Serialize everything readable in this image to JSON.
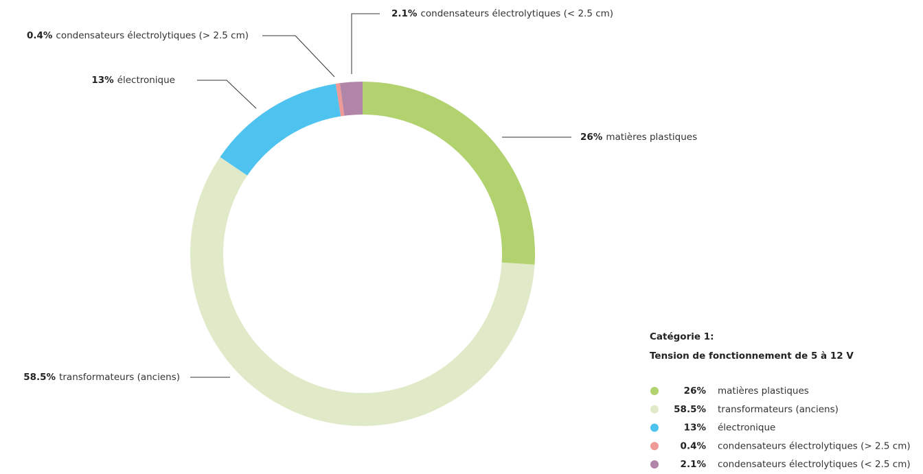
{
  "chart_data": {
    "type": "donut",
    "legend_title": [
      "Catégorie 1:",
      "Tension de fonctionnement de 5 à 12 V"
    ],
    "series": [
      {
        "name": "matières plastiques",
        "color": "#b2d16f",
        "values": [
          26
        ],
        "value_labels": [
          "26%"
        ]
      },
      {
        "name": "transformateurs (anciens)",
        "color": "#e0eac8",
        "values": [
          58.5
        ],
        "value_labels": [
          "58.5%"
        ]
      },
      {
        "name": "électronique",
        "color": "#4fc3ef",
        "values": [
          13
        ],
        "value_labels": [
          "13%"
        ]
      },
      {
        "name": "condensateurs électrolytiques (> 2.5 cm)",
        "color": "#ef9a96",
        "values": [
          0.4
        ],
        "value_labels": [
          "0.4%"
        ]
      },
      {
        "name": "condensateurs électrolytiques (< 2.5 cm)",
        "color": "#b085a8",
        "values": [
          2.1
        ],
        "value_labels": [
          "2.1%"
        ]
      }
    ]
  }
}
